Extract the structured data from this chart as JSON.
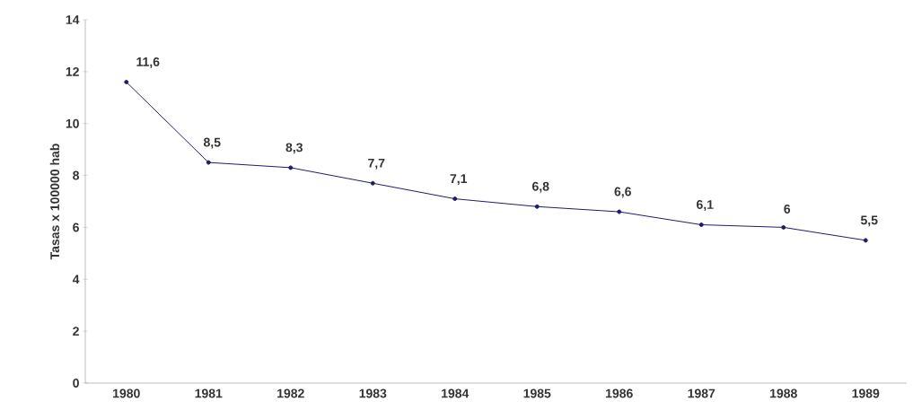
{
  "chart_data": {
    "type": "line",
    "ylabel": "Tasas x 100000 hab",
    "categories": [
      "1980",
      "1981",
      "1982",
      "1983",
      "1984",
      "1985",
      "1986",
      "1987",
      "1988",
      "1989"
    ],
    "values": [
      11.6,
      8.5,
      8.3,
      7.7,
      7.1,
      6.8,
      6.6,
      6.1,
      6,
      5.5
    ],
    "value_labels": [
      "11,6",
      "8,5",
      "8,3",
      "7,7",
      "7,1",
      "6,8",
      "6,6",
      "6,1",
      "6",
      "5,5"
    ],
    "color": "#1c1c6b",
    "marker": "circle",
    "line_style": "solid",
    "grid": false,
    "ylim": [
      0,
      14
    ],
    "yticks": [
      0,
      2,
      4,
      6,
      8,
      10,
      12,
      14
    ]
  }
}
